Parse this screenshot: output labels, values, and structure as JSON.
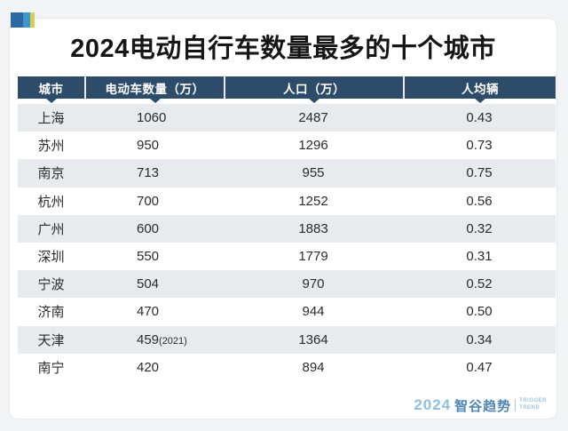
{
  "title": "2024电动自行车数量最多的十个城市",
  "corner_icon": {
    "colors": [
      "#2b6aa0",
      "#3f95cd",
      "#d6cf55"
    ]
  },
  "table": {
    "header_background": "#2d4c69",
    "header_text_color": "#ffffff",
    "row_alt_background": "#e9eaed",
    "columns": [
      "城市",
      "电动车数量（万）",
      "人口（万）",
      "人均辆"
    ],
    "rows": [
      {
        "city": "上海",
        "count": "1060",
        "count_note": "",
        "population": "2487",
        "per_capita": "0.43"
      },
      {
        "city": "苏州",
        "count": "950",
        "count_note": "",
        "population": "1296",
        "per_capita": "0.73"
      },
      {
        "city": "南京",
        "count": "713",
        "count_note": "",
        "population": "955",
        "per_capita": "0.75"
      },
      {
        "city": "杭州",
        "count": "700",
        "count_note": "",
        "population": "1252",
        "per_capita": "0.56"
      },
      {
        "city": "广州",
        "count": "600",
        "count_note": "",
        "population": "1883",
        "per_capita": "0.32"
      },
      {
        "city": "深圳",
        "count": "550",
        "count_note": "",
        "population": "1779",
        "per_capita": "0.31"
      },
      {
        "city": "宁波",
        "count": "504",
        "count_note": "",
        "population": "970",
        "per_capita": "0.52"
      },
      {
        "city": "济南",
        "count": "470",
        "count_note": "",
        "population": "944",
        "per_capita": "0.50"
      },
      {
        "city": "天津",
        "count": "459",
        "count_note": "(2021)",
        "population": "1364",
        "per_capita": "0.34"
      },
      {
        "city": "南宁",
        "count": "420",
        "count_note": "",
        "population": "894",
        "per_capita": "0.47"
      }
    ]
  },
  "footer": {
    "logo_year": "2024",
    "logo_name": "智谷趋势",
    "logo_en_line1": "TRIGGER",
    "logo_en_line2": "TREND"
  },
  "chart_data": {
    "type": "table",
    "title": "2024电动自行车数量最多的十个城市",
    "columns": [
      "城市",
      "电动车数量（万）",
      "人口（万）",
      "人均辆"
    ],
    "rows": [
      [
        "上海",
        "1060",
        "2487",
        "0.43"
      ],
      [
        "苏州",
        "950",
        "1296",
        "0.73"
      ],
      [
        "南京",
        "713",
        "955",
        "0.75"
      ],
      [
        "杭州",
        "700",
        "1252",
        "0.56"
      ],
      [
        "广州",
        "600",
        "1883",
        "0.32"
      ],
      [
        "深圳",
        "550",
        "1779",
        "0.31"
      ],
      [
        "宁波",
        "504",
        "970",
        "0.52"
      ],
      [
        "济南",
        "470",
        "944",
        "0.50"
      ],
      [
        "天津",
        "459(2021)",
        "1364",
        "0.34"
      ],
      [
        "南宁",
        "420",
        "894",
        "0.47"
      ]
    ]
  }
}
